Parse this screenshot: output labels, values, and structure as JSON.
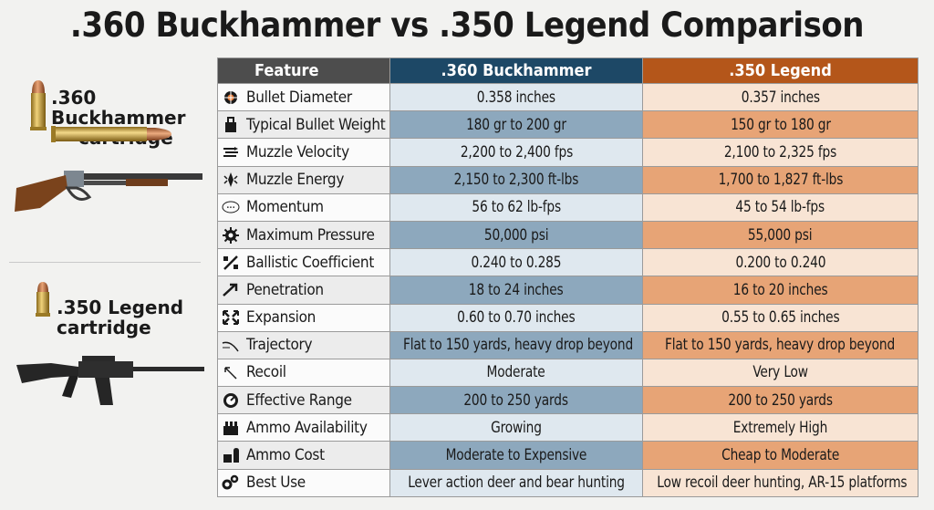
{
  "title": ".360 Buckhammer vs .350 Legend Comparison",
  "left_panel": {
    "top_label": ".360 Buckhammer\ncartridge",
    "top_label_l1": ".360 Buckhammer",
    "top_label_l2": "cartridge",
    "bottom_label_l1": ".350 Legend",
    "bottom_label_l2": "cartridge",
    "top_image": "lever-action rifle with brass cartridge",
    "bottom_image": "AR-15 rifle with brass cartridge"
  },
  "table": {
    "headers": [
      "Feature",
      ".360 Buckhammer",
      ".350 Legend"
    ],
    "header_colors": [
      "#4d4d4d",
      "#1d4866",
      "#b4561a"
    ],
    "rows": [
      {
        "icon": "crosshair-icon",
        "feature": "Bullet Diameter",
        "a": "0.358 inches",
        "b": "0.357 inches"
      },
      {
        "icon": "weight-icon",
        "feature": "Typical Bullet Weight",
        "a": "180 gr to 200 gr",
        "b": "150 gr to 180 gr"
      },
      {
        "icon": "speed-lines-icon",
        "feature": "Muzzle Velocity",
        "a": "2,200 to 2,400 fps",
        "b": "2,100 to 2,325 fps"
      },
      {
        "icon": "energy-burst-icon",
        "feature": "Muzzle Energy",
        "a": "2,150 to 2,300 ft-lbs",
        "b": "1,700 to 1,827 ft-lbs"
      },
      {
        "icon": "momentum-icon",
        "feature": "Momentum",
        "a": "56 to 62 lb-fps",
        "b": "45 to 54 lb-fps"
      },
      {
        "icon": "gear-icon",
        "feature": "Maximum Pressure",
        "a": "50,000 psi",
        "b": "55,000 psi"
      },
      {
        "icon": "percent-icon",
        "feature": "Ballistic Coefficient",
        "a": "0.240 to 0.285",
        "b": "0.200 to 0.240"
      },
      {
        "icon": "arrow-in-icon",
        "feature": "Penetration",
        "a": "18 to 24 inches",
        "b": "16 to 20 inches"
      },
      {
        "icon": "expand-arrows-icon",
        "feature": "Expansion",
        "a": "0.60 to 0.70 inches",
        "b": "0.55 to 0.65 inches"
      },
      {
        "icon": "trajectory-curve-icon",
        "feature": "Trajectory",
        "a": "Flat to 150 yards, heavy drop beyond",
        "b": "Flat to 150 yards, heavy drop beyond"
      },
      {
        "icon": "recoil-arrow-icon",
        "feature": "Recoil",
        "a": "Moderate",
        "b": "Very Low"
      },
      {
        "icon": "target-range-icon",
        "feature": "Effective Range",
        "a": "200 to 250 yards",
        "b": "200 to 250 yards"
      },
      {
        "icon": "ammo-box-icon",
        "feature": "Ammo Availability",
        "a": "Growing",
        "b": "Extremely High"
      },
      {
        "icon": "ammo-cost-icon",
        "feature": "Ammo Cost",
        "a": "Moderate to Expensive",
        "b": "Cheap to Moderate"
      },
      {
        "icon": "gears-icon",
        "feature": "Best Use",
        "a": "Lever action deer and bear hunting",
        "b": "Low recoil deer hunting, AR-15 platforms"
      }
    ]
  }
}
